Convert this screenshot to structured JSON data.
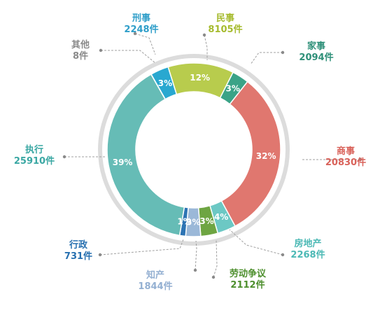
{
  "chart_data": {
    "type": "pie",
    "unit": "件",
    "categories": [
      "刑事",
      "民事",
      "家事",
      "商事",
      "房地产",
      "劳动争议",
      "知产",
      "行政",
      "执行",
      "其他"
    ],
    "values": [
      2248,
      8105,
      2094,
      20830,
      2268,
      2112,
      1844,
      731,
      25910,
      8
    ],
    "value_labels": [
      "2248件",
      "8105件",
      "2094件",
      "20830件",
      "2268件",
      "2112件",
      "1844件",
      "731件",
      "25910件",
      "8件"
    ],
    "percent_labels": [
      "3%",
      "12%",
      "3%",
      "32%",
      "4%",
      "3%",
      "3%",
      "1%",
      "39%",
      ""
    ],
    "colors": [
      "#29a8d0",
      "#b8cc4d",
      "#3aa387",
      "#e0776f",
      "#6cc8c4",
      "#6ea542",
      "#9bb8d8",
      "#2d74b4",
      "#66bcb6",
      "#9a9a9a"
    ],
    "label_colors": [
      "#2f9ec9",
      "#a6bb2e",
      "#2f9079",
      "#d9625a",
      "#4cb9b5",
      "#4d8f2d",
      "#94b0d2",
      "#2770b0",
      "#3aa7a3",
      "#8a8a8a"
    ]
  }
}
